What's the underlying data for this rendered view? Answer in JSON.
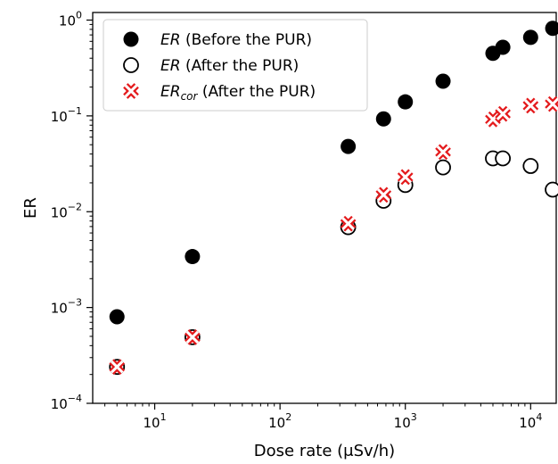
{
  "chart_data": {
    "type": "scatter",
    "xscale": "log",
    "yscale": "log",
    "xlim": [
      3.2,
      16000
    ],
    "ylim": [
      0.0001,
      1.2
    ],
    "xlabel": "Dose rate (μSv/h)",
    "ylabel": "ER",
    "x_ticks": [
      {
        "value": 10,
        "base": "10",
        "exp": "1"
      },
      {
        "value": 100,
        "base": "10",
        "exp": "2"
      },
      {
        "value": 1000,
        "base": "10",
        "exp": "3"
      },
      {
        "value": 10000,
        "base": "10",
        "exp": "4"
      }
    ],
    "y_ticks": [
      {
        "value": 0.0001,
        "base": "10",
        "exp": "−4"
      },
      {
        "value": 0.001,
        "base": "10",
        "exp": "−3"
      },
      {
        "value": 0.01,
        "base": "10",
        "exp": "−2"
      },
      {
        "value": 0.1,
        "base": "10",
        "exp": "−1"
      },
      {
        "value": 1,
        "base": "10",
        "exp": "0"
      }
    ],
    "legend_position": "top-left",
    "series": [
      {
        "name_main": "ER",
        "name_sub": "",
        "name_rest": " (Before the PUR)",
        "marker": "filled-circle",
        "color": "#000000",
        "points": [
          [
            5,
            0.0008
          ],
          [
            20,
            0.0034
          ],
          [
            350,
            0.048
          ],
          [
            670,
            0.093
          ],
          [
            1000,
            0.14
          ],
          [
            2000,
            0.23
          ],
          [
            5000,
            0.45
          ],
          [
            6000,
            0.52
          ],
          [
            10000,
            0.66
          ],
          [
            15000,
            0.82
          ]
        ]
      },
      {
        "name_main": "ER",
        "name_sub": "",
        "name_rest": " (After the PUR)",
        "marker": "open-circle",
        "color": "#000000",
        "points": [
          [
            5,
            0.00024
          ],
          [
            20,
            0.00049
          ],
          [
            350,
            0.0069
          ],
          [
            670,
            0.013
          ],
          [
            1000,
            0.019
          ],
          [
            2000,
            0.029
          ],
          [
            5000,
            0.036
          ],
          [
            6000,
            0.036
          ],
          [
            10000,
            0.03
          ],
          [
            15000,
            0.017
          ]
        ]
      },
      {
        "name_main": "ER",
        "name_sub": "cor",
        "name_rest": " (After the PUR)",
        "marker": "cross",
        "color": "#e41a1c",
        "points": [
          [
            5,
            0.00024
          ],
          [
            20,
            0.00049
          ],
          [
            350,
            0.0075
          ],
          [
            670,
            0.015
          ],
          [
            1000,
            0.023
          ],
          [
            2000,
            0.042
          ],
          [
            5000,
            0.092
          ],
          [
            6000,
            0.105
          ],
          [
            10000,
            0.128
          ],
          [
            15000,
            0.133
          ]
        ]
      }
    ]
  }
}
